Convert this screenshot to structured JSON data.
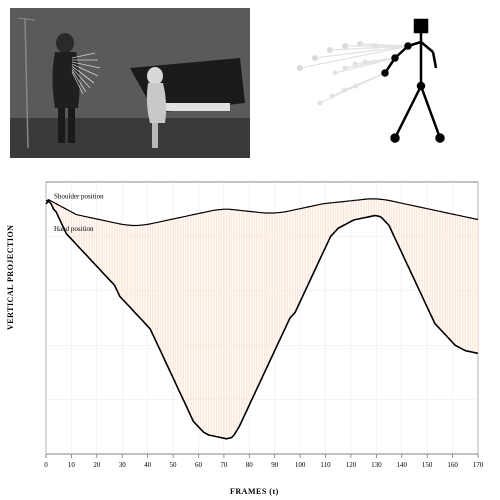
{
  "figure": {
    "top_left": {
      "description": "grayscale-performance-photo",
      "overlay": "motion-trace-lines"
    },
    "top_right": {
      "description": "stick-figure-motion-trace"
    },
    "chart": {
      "type": "line",
      "xlabel": "FRAMES (t)",
      "ylabel": "VERTICAL PROJECTION",
      "xlim": [
        0,
        170
      ],
      "xtick_step": 10,
      "xticks": [
        0,
        10,
        20,
        30,
        40,
        50,
        60,
        70,
        80,
        90,
        100,
        110,
        120,
        130,
        140,
        150,
        160,
        170
      ],
      "label_fontsize": 8,
      "tick_fontsize": 7,
      "series": [
        {
          "name": "Shoulder position",
          "color": "#000000",
          "line_width": 1.2,
          "label_x": 8,
          "label_y": 0.94
        },
        {
          "name": "Hand position",
          "color": "#000000",
          "line_width": 1.6,
          "label_x": 8,
          "label_y": 0.82
        }
      ],
      "shoulder_y": [
        0.93,
        0.935,
        0.93,
        0.925,
        0.92,
        0.915,
        0.91,
        0.905,
        0.9,
        0.895,
        0.89,
        0.885,
        0.88,
        0.878,
        0.876,
        0.874,
        0.872,
        0.87,
        0.868,
        0.866,
        0.864,
        0.862,
        0.86,
        0.858,
        0.856,
        0.854,
        0.852,
        0.85,
        0.848,
        0.846,
        0.844,
        0.843,
        0.842,
        0.841,
        0.84,
        0.84,
        0.84,
        0.841,
        0.842,
        0.843,
        0.844,
        0.846,
        0.848,
        0.85,
        0.852,
        0.854,
        0.856,
        0.858,
        0.86,
        0.862,
        0.864,
        0.866,
        0.868,
        0.87,
        0.872,
        0.874,
        0.876,
        0.878,
        0.88,
        0.882,
        0.884,
        0.886,
        0.888,
        0.89,
        0.892,
        0.894,
        0.896,
        0.897,
        0.898,
        0.899,
        0.9,
        0.9,
        0.9,
        0.899,
        0.898,
        0.897,
        0.896,
        0.895,
        0.894,
        0.893,
        0.892,
        0.891,
        0.89,
        0.889,
        0.888,
        0.887,
        0.886,
        0.886,
        0.886,
        0.886,
        0.886,
        0.887,
        0.888,
        0.889,
        0.89,
        0.892,
        0.894,
        0.896,
        0.898,
        0.9,
        0.902,
        0.904,
        0.906,
        0.908,
        0.91,
        0.912,
        0.914,
        0.916,
        0.918,
        0.92,
        0.921,
        0.922,
        0.923,
        0.924,
        0.925,
        0.926,
        0.927,
        0.928,
        0.929,
        0.93,
        0.931,
        0.932,
        0.933,
        0.934,
        0.935,
        0.936,
        0.937,
        0.938,
        0.938,
        0.938,
        0.938,
        0.937,
        0.936,
        0.935,
        0.934,
        0.932,
        0.93,
        0.928,
        0.926,
        0.924,
        0.922,
        0.92,
        0.918,
        0.916,
        0.914,
        0.912,
        0.91,
        0.908,
        0.906,
        0.904,
        0.902,
        0.9,
        0.898,
        0.896,
        0.894,
        0.892,
        0.89,
        0.888,
        0.886,
        0.884,
        0.882,
        0.88,
        0.878,
        0.876,
        0.874,
        0.872,
        0.87,
        0.868,
        0.866,
        0.864,
        0.862
      ],
      "hand_y": [
        0.92,
        0.93,
        0.92,
        0.9,
        0.89,
        0.87,
        0.85,
        0.83,
        0.81,
        0.8,
        0.79,
        0.78,
        0.77,
        0.76,
        0.75,
        0.74,
        0.73,
        0.72,
        0.71,
        0.7,
        0.69,
        0.68,
        0.67,
        0.66,
        0.65,
        0.64,
        0.63,
        0.62,
        0.6,
        0.58,
        0.57,
        0.56,
        0.55,
        0.54,
        0.53,
        0.52,
        0.51,
        0.5,
        0.49,
        0.48,
        0.47,
        0.46,
        0.44,
        0.42,
        0.4,
        0.38,
        0.36,
        0.34,
        0.32,
        0.3,
        0.28,
        0.26,
        0.24,
        0.22,
        0.2,
        0.18,
        0.16,
        0.14,
        0.12,
        0.11,
        0.1,
        0.09,
        0.08,
        0.075,
        0.07,
        0.068,
        0.066,
        0.064,
        0.062,
        0.06,
        0.058,
        0.056,
        0.058,
        0.06,
        0.07,
        0.085,
        0.1,
        0.12,
        0.14,
        0.16,
        0.18,
        0.2,
        0.22,
        0.24,
        0.26,
        0.28,
        0.3,
        0.32,
        0.34,
        0.36,
        0.38,
        0.4,
        0.42,
        0.44,
        0.46,
        0.48,
        0.5,
        0.51,
        0.52,
        0.54,
        0.56,
        0.58,
        0.6,
        0.62,
        0.64,
        0.66,
        0.68,
        0.7,
        0.72,
        0.74,
        0.76,
        0.78,
        0.8,
        0.81,
        0.82,
        0.83,
        0.835,
        0.84,
        0.845,
        0.85,
        0.855,
        0.86,
        0.862,
        0.864,
        0.866,
        0.868,
        0.87,
        0.872,
        0.874,
        0.876,
        0.876,
        0.874,
        0.87,
        0.86,
        0.85,
        0.84,
        0.82,
        0.8,
        0.78,
        0.76,
        0.74,
        0.72,
        0.7,
        0.68,
        0.66,
        0.64,
        0.62,
        0.6,
        0.58,
        0.56,
        0.54,
        0.52,
        0.5,
        0.48,
        0.47,
        0.46,
        0.45,
        0.44,
        0.43,
        0.42,
        0.41,
        0.4,
        0.395,
        0.39,
        0.385,
        0.38,
        0.378,
        0.376,
        0.374,
        0.372,
        0.37
      ],
      "fill_color": "#fde4d4",
      "fill_opacity": 0.8,
      "background_color": "#ffffff",
      "grid_color": "#e8e8e8",
      "axis_color": "#666666"
    }
  }
}
